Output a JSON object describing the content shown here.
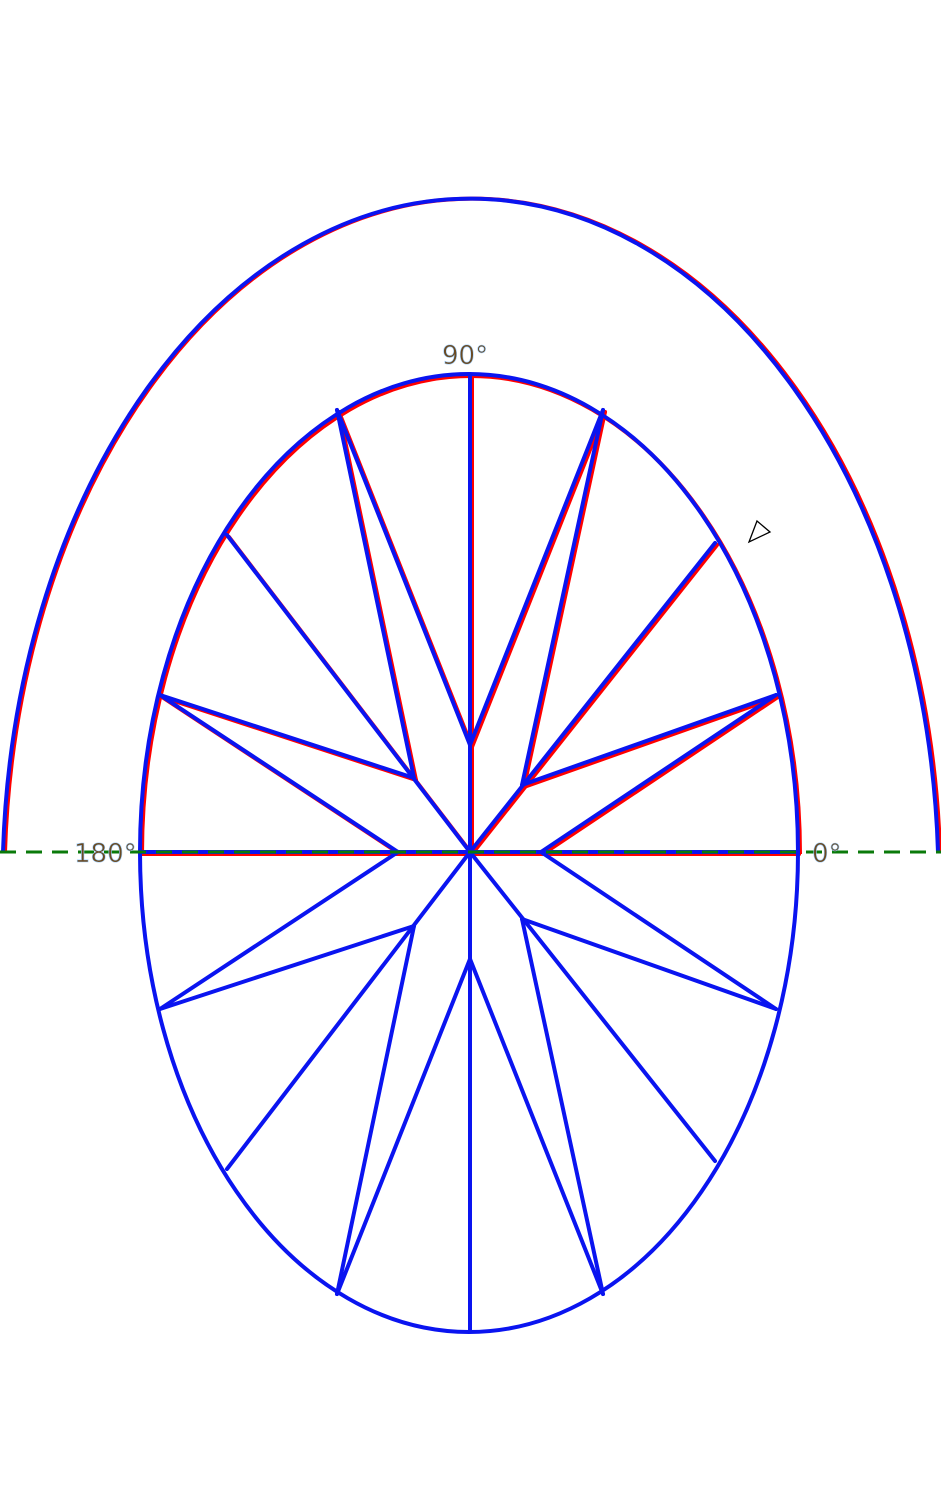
{
  "labels": {
    "deg90": "90°",
    "deg180": "180°",
    "deg0": "0°"
  },
  "colors": {
    "primary": "#0a14f0",
    "overlay": "#ff0000",
    "baseline": "#0a7a0a",
    "label": "#6b4a22"
  },
  "icons": {
    "cursor": "triangle-pointer-icon"
  }
}
